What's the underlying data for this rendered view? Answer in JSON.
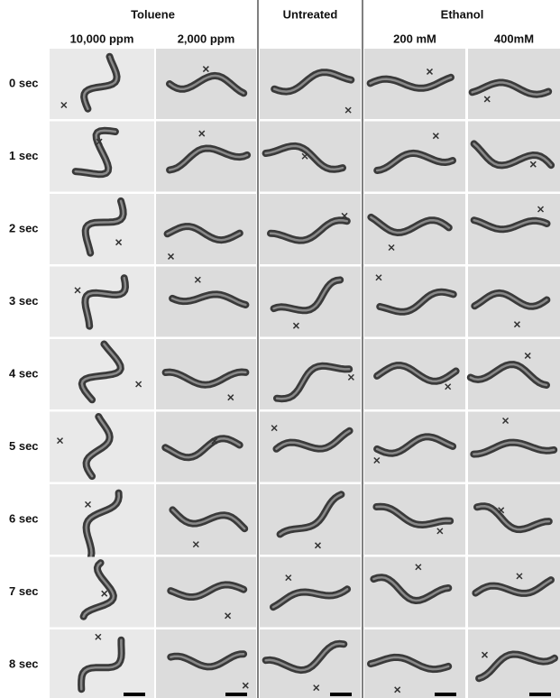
{
  "header": {
    "groups": [
      {
        "title": "Toluene",
        "columns": [
          "10,000 ppm",
          "2,000 ppm"
        ]
      },
      {
        "title": "Untreated"
      },
      {
        "title": "Ethanol",
        "columns": [
          "200 mM",
          "400mM"
        ]
      }
    ]
  },
  "rows": [
    "0 sec",
    "1 sec",
    "2 sec",
    "3 sec",
    "4 sec",
    "5 sec",
    "6 sec",
    "7 sec",
    "8 sec"
  ]
}
